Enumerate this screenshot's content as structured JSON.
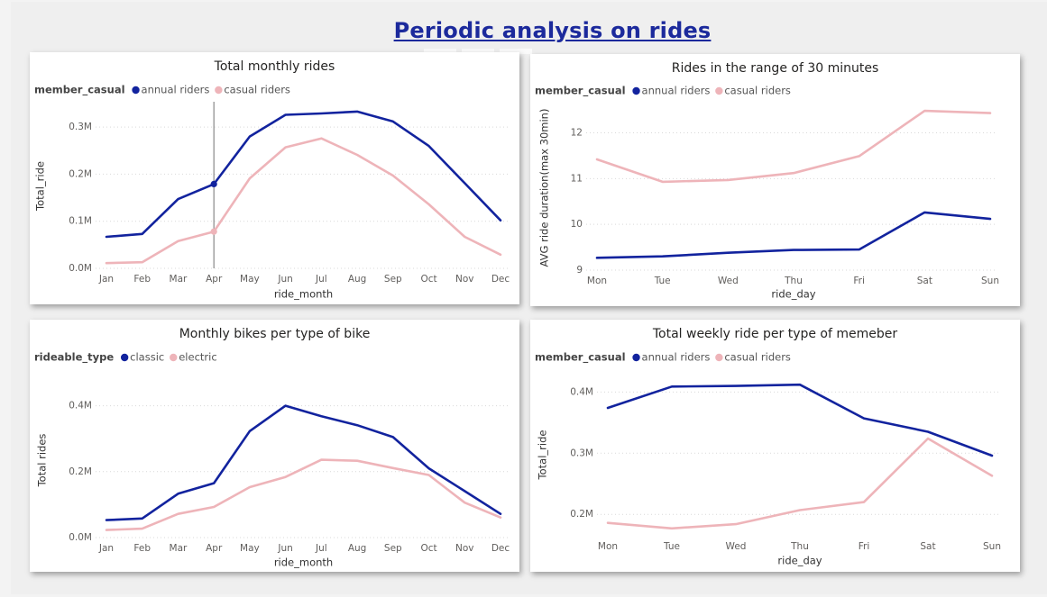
{
  "page": {
    "title": "Periodic analysis on rides",
    "colors": {
      "annual": "#12239e",
      "casual": "#eeb4b9",
      "background": "#efefef"
    }
  },
  "chart_data": [
    {
      "id": "monthly",
      "type": "line",
      "title": "Total monthly rides",
      "legend": {
        "key": "member_casual",
        "labels": [
          "annual riders",
          "casual riders"
        ]
      },
      "xlabel": "ride_month",
      "ylabel": "Total_ride",
      "categories": [
        "Jan",
        "Feb",
        "Mar",
        "Apr",
        "May",
        "Jun",
        "Jul",
        "Aug",
        "Sep",
        "Oct",
        "Nov",
        "Dec"
      ],
      "yticks": [
        0,
        0.1,
        0.2,
        0.3
      ],
      "ytick_labels": [
        "0.0M",
        "0.1M",
        "0.2M",
        "0.3M"
      ],
      "ylim": [
        0,
        0.35
      ],
      "series": [
        {
          "name": "annual riders",
          "color": "#12239e",
          "values": [
            0.067,
            0.073,
            0.147,
            0.179,
            0.28,
            0.326,
            0.329,
            0.333,
            0.312,
            0.26,
            0.181,
            0.102
          ]
        },
        {
          "name": "casual riders",
          "color": "#eeb4b9",
          "values": [
            0.011,
            0.013,
            0.058,
            0.078,
            0.191,
            0.257,
            0.276,
            0.241,
            0.197,
            0.136,
            0.067,
            0.029
          ]
        }
      ],
      "highlight_category": "Apr"
    },
    {
      "id": "range30",
      "type": "line",
      "title": "Rides in the range of 30 minutes",
      "legend": {
        "key": "member_casual",
        "labels": [
          "annual riders",
          "casual riders"
        ]
      },
      "xlabel": "ride_day",
      "ylabel": "AVG ride duration(max 30min)",
      "categories": [
        "Mon",
        "Tue",
        "Wed",
        "Thu",
        "Fri",
        "Sat",
        "Sun"
      ],
      "yticks": [
        9,
        10,
        11,
        12
      ],
      "ytick_labels": [
        "9",
        "10",
        "11",
        "12"
      ],
      "ylim": [
        9,
        12.6
      ],
      "series": [
        {
          "name": "annual riders",
          "color": "#12239e",
          "values": [
            9.27,
            9.3,
            9.38,
            9.44,
            9.45,
            10.26,
            10.12
          ]
        },
        {
          "name": "casual riders",
          "color": "#eeb4b9",
          "values": [
            11.42,
            10.93,
            10.97,
            11.12,
            11.49,
            12.48,
            12.43
          ]
        }
      ]
    },
    {
      "id": "biketype",
      "type": "line",
      "title": "Monthly bikes per type of bike",
      "legend": {
        "key": "rideable_type",
        "labels": [
          "classic",
          "electric"
        ]
      },
      "xlabel": "ride_month",
      "ylabel": "Total rides",
      "categories": [
        "Jan",
        "Feb",
        "Mar",
        "Apr",
        "May",
        "Jun",
        "Jul",
        "Aug",
        "Sep",
        "Oct",
        "Nov",
        "Dec"
      ],
      "yticks": [
        0,
        0.2,
        0.4
      ],
      "ytick_labels": [
        "0.0M",
        "0.2M",
        "0.4M"
      ],
      "ylim": [
        0,
        0.47
      ],
      "series": [
        {
          "name": "classic",
          "color": "#12239e",
          "values": [
            0.053,
            0.058,
            0.133,
            0.165,
            0.323,
            0.4,
            0.368,
            0.341,
            0.305,
            0.21,
            0.141,
            0.072
          ]
        },
        {
          "name": "electric",
          "color": "#eeb4b9",
          "values": [
            0.023,
            0.027,
            0.072,
            0.093,
            0.153,
            0.184,
            0.236,
            0.233,
            0.211,
            0.19,
            0.106,
            0.061
          ]
        }
      ]
    },
    {
      "id": "weekly",
      "type": "line",
      "title": "Total weekly ride per type of memeber",
      "legend": {
        "key": "member_casual",
        "labels": [
          "annual riders",
          "casual riders"
        ]
      },
      "xlabel": "ride_day",
      "ylabel": "Total_ride",
      "categories": [
        "Mon",
        "Tue",
        "Wed",
        "Thu",
        "Fri",
        "Sat",
        "Sun"
      ],
      "yticks": [
        0.2,
        0.3,
        0.4
      ],
      "ytick_labels": [
        "0.2M",
        "0.3M",
        "0.4M"
      ],
      "ylim": [
        0.165,
        0.43
      ],
      "series": [
        {
          "name": "annual riders",
          "color": "#12239e",
          "values": [
            0.374,
            0.409,
            0.41,
            0.412,
            0.357,
            0.335,
            0.296
          ]
        },
        {
          "name": "casual riders",
          "color": "#eeb4b9",
          "values": [
            0.186,
            0.177,
            0.184,
            0.207,
            0.22,
            0.324,
            0.263
          ]
        }
      ]
    }
  ]
}
